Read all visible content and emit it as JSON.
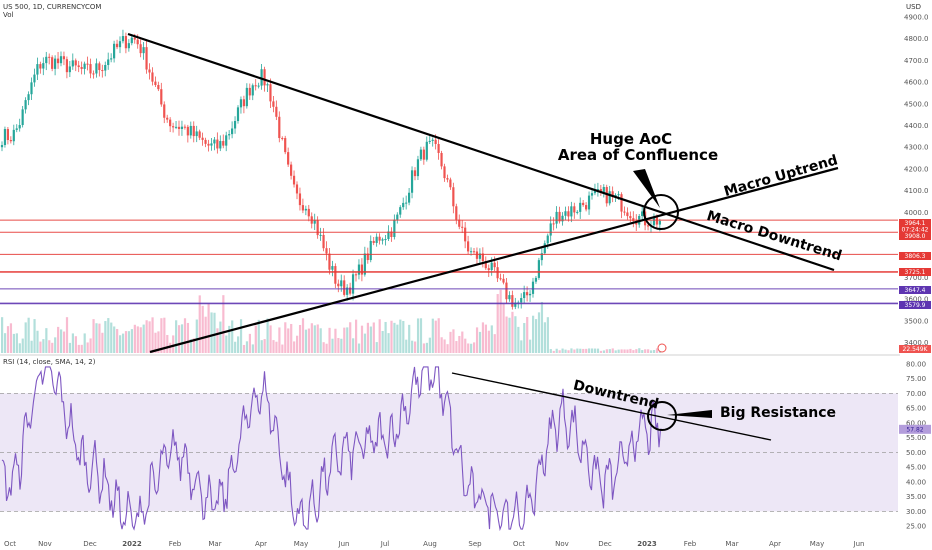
{
  "header": {
    "symbol": "US 500, 1D, CURRENCYCOM",
    "volume_label": "Vol",
    "currency": "USD"
  },
  "rsi_header": "RSI (14, close, SMA, 14, 2)",
  "colors": {
    "up": "#26a69a",
    "down": "#ef5350",
    "red_level": "#e53935",
    "purple_level": "#5e35b1",
    "rsi_line": "#7e57c2",
    "rsi_band": "#ede7f6",
    "volume_up": "#b2dfdb",
    "volume_down": "#f8bbd0",
    "trendline": "#000000"
  },
  "annotations": {
    "aoc_line1": "Huge AoC",
    "aoc_line2": "Area of Confluence",
    "macro_uptrend": "Macro Uptrend",
    "macro_downtrend": "Macro Downtrend",
    "rsi_downtrend": "Downtrend",
    "big_resistance": "Big Resistance"
  },
  "price_tags": [
    {
      "label": "3964.1",
      "sub": "07:24:42",
      "color": "#e53935"
    },
    {
      "label": "3908.0",
      "color": "#e53935"
    },
    {
      "label": "3806.3",
      "color": "#e53935"
    },
    {
      "label": "3725.1",
      "color": "#e53935"
    },
    {
      "label": "3647.4",
      "color": "#5e35b1"
    },
    {
      "label": "3579.9",
      "color": "#5e35b1"
    },
    {
      "label": "22.549K",
      "color": "#ef5350"
    }
  ],
  "rsi_tag": "57.82",
  "chart_data": [
    {
      "type": "candlestick",
      "title": "US 500, 1D, CURRENCYCOM",
      "y_axis_ticks": [
        "4900.0",
        "4800.0",
        "4700.0",
        "4600.0",
        "4500.0",
        "4400.0",
        "4300.0",
        "4200.0",
        "4100.0",
        "4000.0",
        "3900.0",
        "3800.0",
        "3700.0",
        "3600.0",
        "3500.0",
        "3400.0"
      ],
      "x_axis_ticks": [
        "Oct",
        "Nov",
        "Dec",
        "2022",
        "Feb",
        "Mar",
        "Apr",
        "May",
        "Jun",
        "Jul",
        "Aug",
        "Sep",
        "Oct",
        "Nov",
        "Dec",
        "2023",
        "Feb",
        "Mar",
        "Apr",
        "May",
        "Jun"
      ],
      "approx_close_path": [
        {
          "x": "Oct 2021",
          "y": 4350
        },
        {
          "x": "Nov 2021",
          "y": 4700
        },
        {
          "x": "Dec 2021",
          "y": 4650
        },
        {
          "x": "Jan 2022",
          "y": 4800
        },
        {
          "x": "Feb 2022",
          "y": 4400
        },
        {
          "x": "Mar 2022",
          "y": 4300
        },
        {
          "x": "Apr 2022",
          "y": 4620
        },
        {
          "x": "May 2022",
          "y": 4050
        },
        {
          "x": "Jun 2022",
          "y": 3650
        },
        {
          "x": "Jul 2022",
          "y": 3900
        },
        {
          "x": "Aug 2022",
          "y": 4300
        },
        {
          "x": "Sep 2022",
          "y": 3800
        },
        {
          "x": "Oct 2022",
          "y": 3580
        },
        {
          "x": "Nov 2022",
          "y": 4000
        },
        {
          "x": "Dec 2022",
          "y": 4080
        },
        {
          "x": "Jan 2023",
          "y": 3964
        }
      ],
      "horizontal_levels": [
        3964.1,
        3908.0,
        3806.3,
        3725.1,
        3647.4,
        3579.9
      ],
      "last_price": 3964.1,
      "volume_last": "22.549K"
    },
    {
      "type": "line",
      "title": "RSI (14, close, SMA, 14, 2)",
      "y_axis_ticks": [
        "80.00",
        "75.00",
        "70.00",
        "65.00",
        "60.00",
        "55.00",
        "50.00",
        "45.00",
        "40.00",
        "35.00",
        "30.00",
        "25.00"
      ],
      "ylim": [
        23,
        82
      ],
      "bands": [
        30,
        50,
        70
      ],
      "last_value": 57.82,
      "approx_path": [
        {
          "x": "Oct 2021",
          "y": 40
        },
        {
          "x": "Nov 2021",
          "y": 78
        },
        {
          "x": "Dec 2021",
          "y": 45
        },
        {
          "x": "Jan 2022",
          "y": 27
        },
        {
          "x": "Feb 2022",
          "y": 50
        },
        {
          "x": "Mar 2022",
          "y": 32
        },
        {
          "x": "Apr 2022",
          "y": 70
        },
        {
          "x": "May 2022",
          "y": 28
        },
        {
          "x": "Jun 2022",
          "y": 50
        },
        {
          "x": "Jul 2022",
          "y": 55
        },
        {
          "x": "Aug 2022",
          "y": 78
        },
        {
          "x": "Sep 2022",
          "y": 35
        },
        {
          "x": "Oct 2022",
          "y": 27
        },
        {
          "x": "Nov 2022",
          "y": 62
        },
        {
          "x": "Dec 2022",
          "y": 40
        },
        {
          "x": "Jan 2023",
          "y": 57.82
        }
      ]
    }
  ]
}
